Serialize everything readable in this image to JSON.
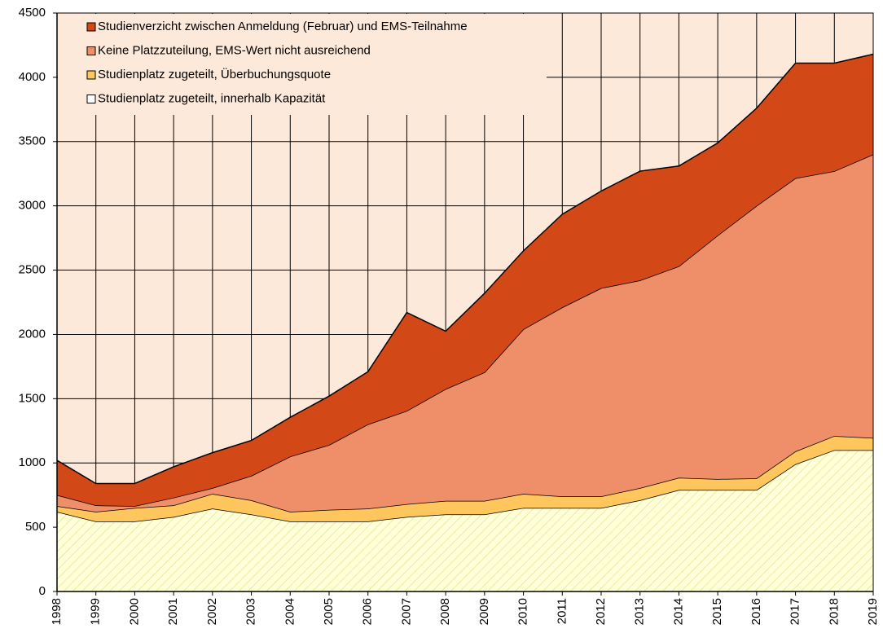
{
  "chart_data": {
    "type": "stacked-area",
    "categories": [
      "1998",
      "1999",
      "2000",
      "2001",
      "2002",
      "2003",
      "2004",
      "2005",
      "2006",
      "2007",
      "2008",
      "2009",
      "2010",
      "2011",
      "2012",
      "2013",
      "2014",
      "2015",
      "2016",
      "2017",
      "2018",
      "2019"
    ],
    "series": [
      {
        "name": "Studienplatz zugeteilt, innerhalb Kapazität",
        "color": "#FFFFD9",
        "values": [
          620,
          545,
          545,
          580,
          645,
          600,
          545,
          545,
          545,
          580,
          600,
          600,
          650,
          650,
          650,
          710,
          790,
          790,
          790,
          990,
          1100,
          1100
        ]
      },
      {
        "name": "Studienplatz zugeteilt, Überbuchungsquote",
        "color": "#FFC65E",
        "values": [
          45,
          75,
          105,
          90,
          115,
          110,
          75,
          90,
          100,
          100,
          105,
          105,
          110,
          90,
          90,
          95,
          95,
          85,
          90,
          100,
          110,
          95
        ]
      },
      {
        "name": "Keine Platzzuteilung, EMS-Wert nicht ausreichend",
        "color": "#EE8F6A",
        "values": [
          85,
          50,
          15,
          60,
          45,
          190,
          430,
          505,
          655,
          725,
          870,
          1000,
          1280,
          1470,
          1620,
          1615,
          1645,
          1895,
          2120,
          2125,
          2060,
          2205
        ]
      },
      {
        "name": "Studienverzicht zwischen Anmeldung (Februar) und EMS-Teilnahme",
        "color": "#D34817",
        "values": [
          270,
          170,
          175,
          240,
          275,
          275,
          305,
          380,
          410,
          765,
          450,
          615,
          610,
          725,
          755,
          850,
          780,
          720,
          760,
          895,
          840,
          780
        ]
      }
    ],
    "ylim": [
      0,
      4500
    ],
    "yticks": [
      0,
      500,
      1000,
      1500,
      2000,
      2500,
      3000,
      3500,
      4000,
      4500
    ],
    "grid": true,
    "legend": "upper left"
  }
}
